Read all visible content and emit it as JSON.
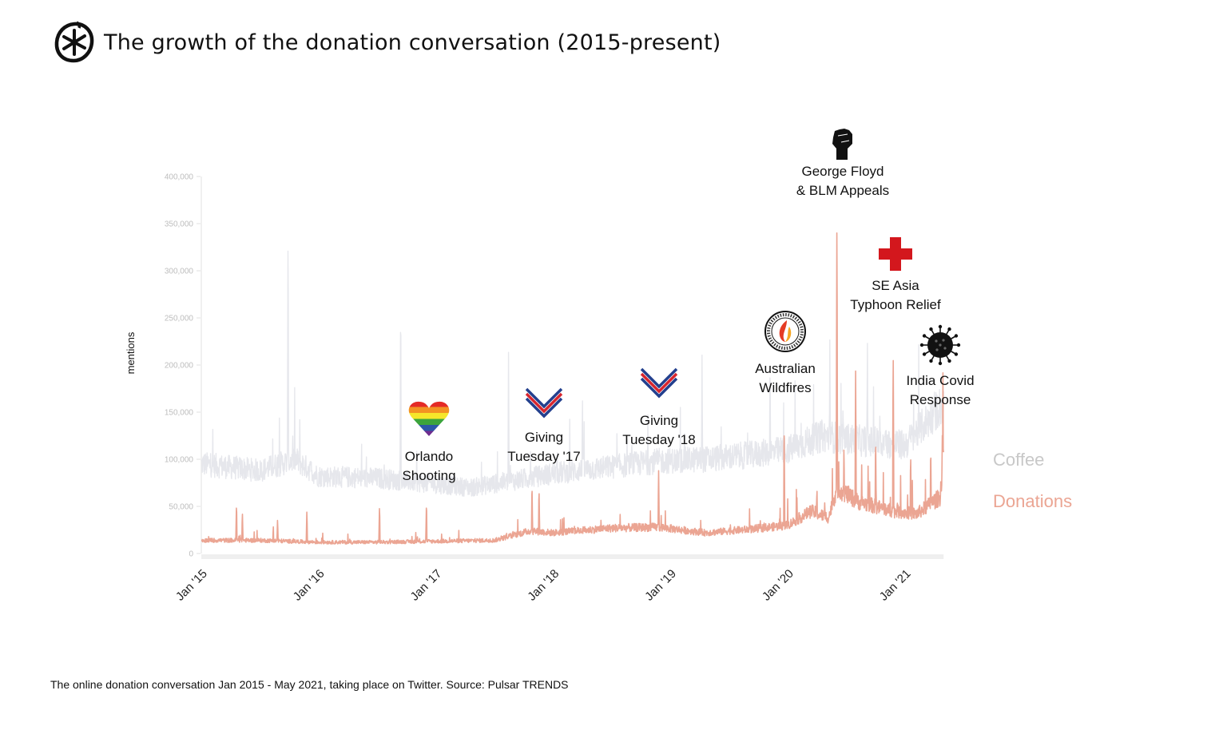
{
  "header": {
    "title": "The growth of the donation conversation (2015-present)",
    "logo_icon": "asterisk-circle-logo-icon"
  },
  "caption": "The online donation conversation Jan 2015 - May 2021, taking place on Twitter. Source: Pulsar TRENDS",
  "chart_data": {
    "type": "line",
    "title": "The growth of the donation conversation (2015-present)",
    "xlabel": "",
    "ylabel": "mentions",
    "ylim": [
      0,
      400000
    ],
    "xlim": [
      "2015-01",
      "2021-05"
    ],
    "yticks": [
      0,
      50000,
      100000,
      150000,
      200000,
      250000,
      300000,
      350000,
      400000
    ],
    "ytick_labels": [
      "0",
      "50,000",
      "100,000",
      "150,000",
      "200,000",
      "250,000",
      "300,000",
      "350,000",
      "400,000"
    ],
    "xticks": [
      "Jan '15",
      "Jan '16",
      "Jan '17",
      "Jan '18",
      "Jan '19",
      "Jan '20",
      "Jan '21"
    ],
    "grid": false,
    "legend_position": "right",
    "colors": {
      "coffee": "#e6e7ec",
      "donations": "#eba593",
      "coffee_legend": "#c8c8c8",
      "donations_legend": "#eba593",
      "axis": "#ececec"
    },
    "series": [
      {
        "name": "Coffee",
        "baseline_x": [
          2015.0,
          2015.5,
          2015.8,
          2016.0,
          2016.5,
          2016.9,
          2017.3,
          2017.7,
          2018.0,
          2018.5,
          2018.9,
          2019.3,
          2019.7,
          2020.0,
          2020.3,
          2020.6,
          2021.0,
          2021.33
        ],
        "baseline_y": [
          95000,
          88000,
          100000,
          82000,
          80000,
          75000,
          70000,
          78000,
          85000,
          92000,
          98000,
          100000,
          105000,
          110000,
          125000,
          120000,
          115000,
          160000
        ],
        "spikes": [
          {
            "x": 2015.74,
            "y": 352000
          },
          {
            "x": 2015.84,
            "y": 145000
          },
          {
            "x": 2016.7,
            "y": 279000
          },
          {
            "x": 2017.62,
            "y": 215000
          },
          {
            "x": 2018.25,
            "y": 175000
          },
          {
            "x": 2019.27,
            "y": 215000
          },
          {
            "x": 2019.85,
            "y": 220000
          },
          {
            "x": 2020.36,
            "y": 235000
          },
          {
            "x": 2020.68,
            "y": 235000
          },
          {
            "x": 2020.9,
            "y": 215000
          },
          {
            "x": 2021.25,
            "y": 200000
          }
        ]
      },
      {
        "name": "Donations",
        "baseline_x": [
          2015.0,
          2015.5,
          2016.0,
          2016.5,
          2017.0,
          2017.5,
          2017.8,
          2018.0,
          2018.5,
          2018.9,
          2019.3,
          2019.7,
          2020.0,
          2020.2,
          2020.35,
          2020.42,
          2020.6,
          2020.9,
          2021.1,
          2021.3,
          2021.33
        ],
        "baseline_y": [
          14000,
          14000,
          12000,
          12000,
          13000,
          14000,
          24000,
          22000,
          27000,
          28000,
          22000,
          26000,
          30000,
          45000,
          38000,
          70000,
          55000,
          45000,
          42000,
          60000,
          110000
        ],
        "spikes": [
          {
            "x": 2015.3,
            "y": 55000
          },
          {
            "x": 2015.35,
            "y": 45000
          },
          {
            "x": 2015.65,
            "y": 37000
          },
          {
            "x": 2015.9,
            "y": 46000
          },
          {
            "x": 2016.52,
            "y": 52000
          },
          {
            "x": 2016.92,
            "y": 56000
          },
          {
            "x": 2017.82,
            "y": 77000
          },
          {
            "x": 2017.88,
            "y": 72000
          },
          {
            "x": 2018.9,
            "y": 90000
          },
          {
            "x": 2019.97,
            "y": 143000
          },
          {
            "x": 2020.25,
            "y": 75000
          },
          {
            "x": 2020.42,
            "y": 362000
          },
          {
            "x": 2020.48,
            "y": 120000
          },
          {
            "x": 2020.58,
            "y": 197000
          },
          {
            "x": 2020.75,
            "y": 130000
          },
          {
            "x": 2020.9,
            "y": 220000
          },
          {
            "x": 2021.05,
            "y": 100000
          },
          {
            "x": 2021.22,
            "y": 120000
          },
          {
            "x": 2021.32,
            "y": 140000
          }
        ]
      }
    ],
    "annotations": [
      {
        "label_lines": [
          "Orlando",
          "Shooting"
        ],
        "icon": "rainbow-heart-icon",
        "date": "2016-06"
      },
      {
        "label_lines": [
          "Giving",
          "Tuesday '17"
        ],
        "icon": "giving-tuesday-heart-icon",
        "date": "2017-11"
      },
      {
        "label_lines": [
          "Giving",
          "Tuesday '18"
        ],
        "icon": "giving-tuesday-heart-icon",
        "date": "2018-11"
      },
      {
        "label_lines": [
          "Australian",
          "Wildfires"
        ],
        "icon": "bushfire-foundation-icon",
        "date": "2020-01"
      },
      {
        "label_lines": [
          "George Floyd",
          "& BLM Appeals"
        ],
        "icon": "raised-fist-icon",
        "date": "2020-06"
      },
      {
        "label_lines": [
          "SE Asia",
          "Typhoon Relief"
        ],
        "icon": "red-cross-icon",
        "date": "2020-11"
      },
      {
        "label_lines": [
          "India Covid",
          "Response"
        ],
        "icon": "coronavirus-icon",
        "date": "2021-04"
      }
    ],
    "legend": [
      {
        "label": "Coffee"
      },
      {
        "label": "Donations"
      }
    ]
  }
}
